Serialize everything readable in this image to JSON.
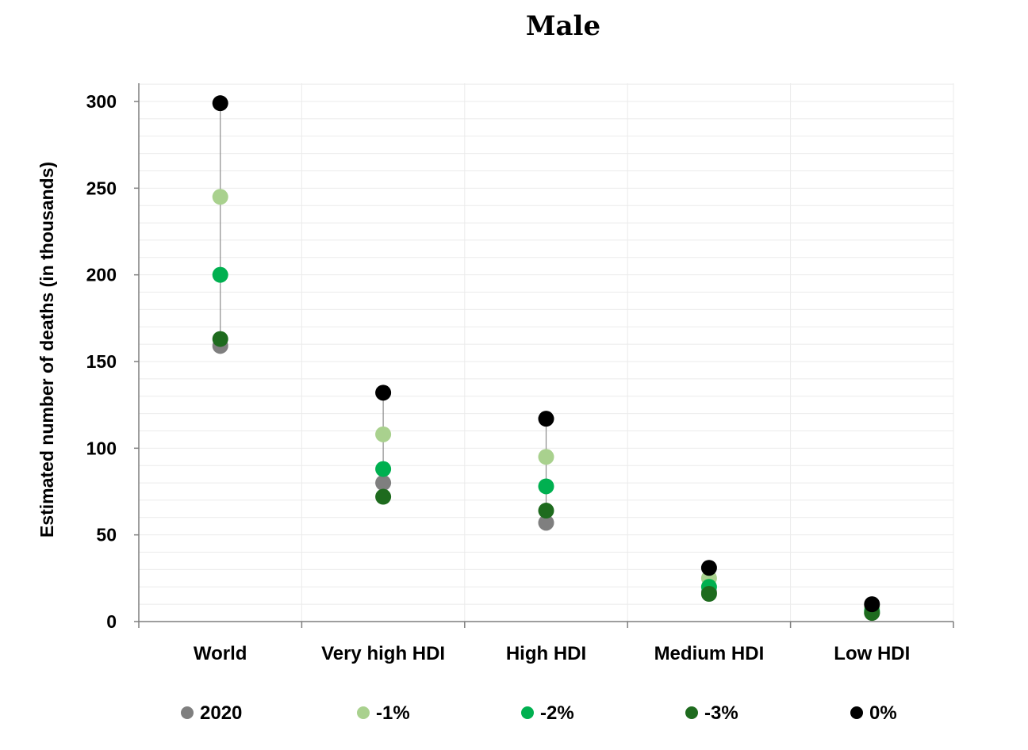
{
  "chart_data": {
    "type": "scatter",
    "title": "Male",
    "ylabel": "Estimated number of deaths (in thousands)",
    "xlabel": "",
    "categories": [
      "World",
      "Very high HDI",
      "High HDI",
      "Medium HDI",
      "Low HDI"
    ],
    "ylim": [
      0,
      300
    ],
    "yticks": [
      0,
      50,
      100,
      150,
      200,
      250,
      300
    ],
    "grid": true,
    "legend_position": "bottom",
    "series": [
      {
        "name": "2020",
        "color": "#7f7f7f",
        "values": [
          159,
          80,
          57,
          17,
          5
        ]
      },
      {
        "name": "-1%",
        "color": "#a9d18e",
        "values": [
          245,
          108,
          95,
          25,
          8
        ]
      },
      {
        "name": "-2%",
        "color": "#00b050",
        "values": [
          200,
          88,
          78,
          20,
          6
        ]
      },
      {
        "name": "-3%",
        "color": "#1e6b1e",
        "values": [
          163,
          72,
          64,
          16,
          5
        ]
      },
      {
        "name": "0%",
        "color": "#000000",
        "values": [
          299,
          132,
          117,
          31,
          10
        ]
      }
    ]
  }
}
